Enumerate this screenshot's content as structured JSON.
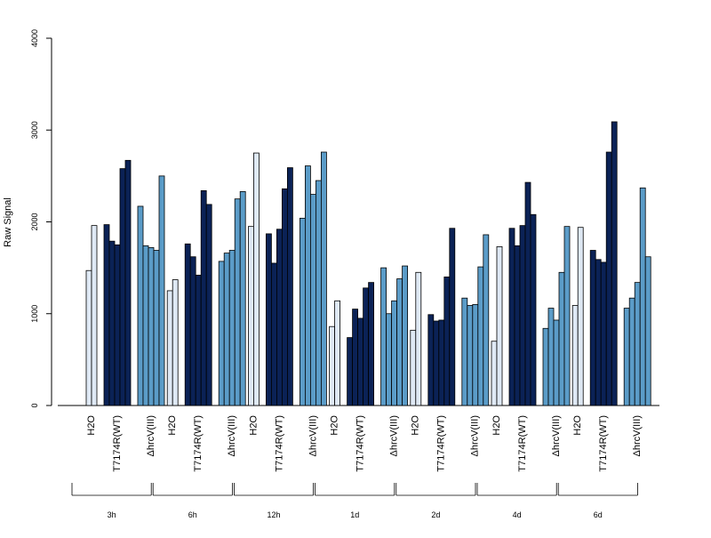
{
  "chart_data": {
    "type": "bar",
    "title": "",
    "xlabel": "",
    "ylabel": "Raw Signal",
    "ylim": [
      0,
      4000
    ],
    "yticks": [
      "0",
      "1000",
      "2000",
      "3000",
      "4000"
    ],
    "grid": false,
    "legend": "none",
    "treatments": [
      "H2O",
      "T7174R(WT)",
      "ΔhrcV(III)"
    ],
    "treatment_colors": [
      "#dfe9f5",
      "#0b2256",
      "#5b9cc8"
    ],
    "groups": [
      {
        "label": "3h",
        "series": [
          [
            1470,
            1960
          ],
          [
            1970,
            1790,
            1750,
            2580,
            2670
          ],
          [
            2170,
            1740,
            1720,
            1690,
            2500
          ]
        ]
      },
      {
        "label": "6h",
        "series": [
          [
            1250,
            1370
          ],
          [
            1760,
            1620,
            1420,
            2340,
            2190
          ],
          [
            1570,
            1660,
            1690,
            2250,
            2330
          ]
        ]
      },
      {
        "label": "12h",
        "series": [
          [
            1950,
            2750
          ],
          [
            1870,
            1550,
            1920,
            2360,
            2590
          ],
          [
            2040,
            2610,
            2300,
            2450,
            2760
          ]
        ]
      },
      {
        "label": "1d",
        "series": [
          [
            860,
            1140
          ],
          [
            740,
            1050,
            950,
            1280,
            1340
          ],
          [
            1500,
            1000,
            1140,
            1380,
            1520
          ]
        ]
      },
      {
        "label": "2d",
        "series": [
          [
            820,
            1450
          ],
          [
            990,
            920,
            930,
            1400,
            1930
          ],
          [
            1170,
            1090,
            1100,
            1510,
            1860
          ]
        ]
      },
      {
        "label": "4d",
        "series": [
          [
            700,
            1730
          ],
          [
            1930,
            1740,
            1960,
            2430,
            2080
          ],
          [
            840,
            1060,
            930,
            1450,
            1950
          ]
        ]
      },
      {
        "label": "6d",
        "series": [
          [
            1090,
            1940
          ],
          [
            1690,
            1590,
            1560,
            2760,
            3090
          ],
          [
            1060,
            1170,
            1340,
            2370,
            1620
          ]
        ]
      }
    ]
  }
}
